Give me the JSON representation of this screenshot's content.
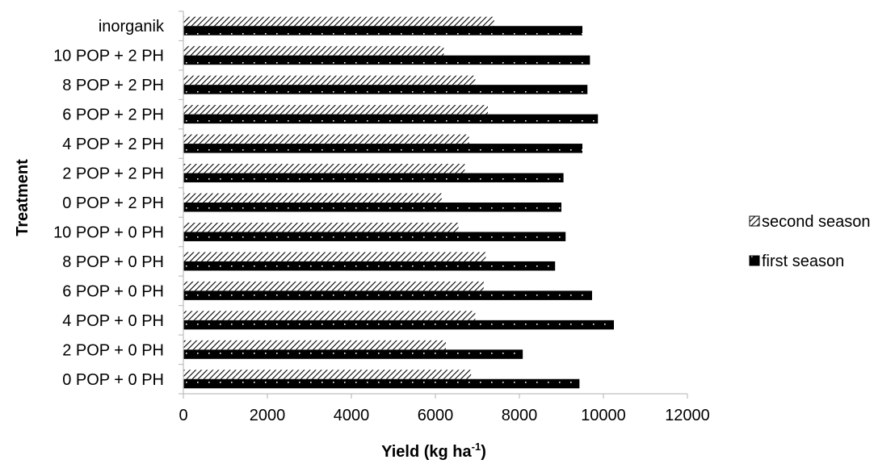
{
  "chart_data": {
    "type": "bar",
    "orientation": "horizontal",
    "title": "",
    "xlabel": "Yield (kg ha",
    "xlabel_superscript": "-1",
    "xlabel_suffix": ")",
    "ylabel": "Treatment",
    "xlim": [
      0,
      12000
    ],
    "x_ticks": [
      "0",
      "2000",
      "4000",
      "6000",
      "8000",
      "10000",
      "12000"
    ],
    "grid": false,
    "legend_position": "right",
    "categories": [
      "0 POP + 0 PH",
      "2 POP + 0 PH",
      "4 POP + 0 PH",
      "6 POP + 0 PH",
      "8 POP + 0 PH",
      "10 POP + 0 PH",
      "0 POP + 2 PH",
      "2 POP + 2 PH",
      "4 POP + 2 PH",
      "6 POP + 2 PH",
      "8 POP + 2 PH",
      "10 POP + 2 PH",
      "inorganik"
    ],
    "series": [
      {
        "name": "second season",
        "pattern": "diagonal-hatch",
        "values": [
          6850,
          6250,
          6950,
          7150,
          7200,
          6550,
          6150,
          6700,
          6800,
          7250,
          6950,
          6200,
          7400
        ]
      },
      {
        "name": "first season",
        "pattern": "dark-dotted",
        "values": [
          9430,
          8080,
          10250,
          9730,
          8850,
          9100,
          9000,
          9050,
          9500,
          9870,
          9620,
          9680,
          9500
        ]
      }
    ]
  },
  "colors": {
    "bar_dark": "#000000",
    "hatch_fg": "#000000",
    "hatch_bg": "#ffffff",
    "axis": "#bfbfbf"
  }
}
